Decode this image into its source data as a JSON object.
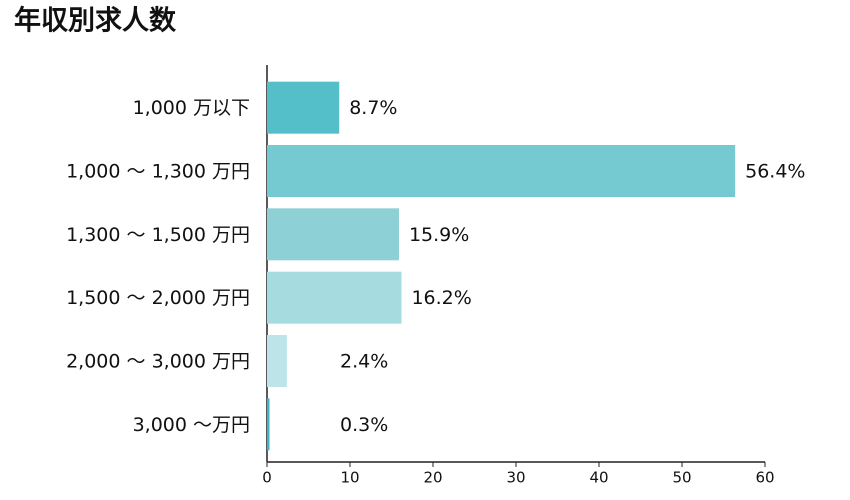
{
  "chart_data": {
    "type": "bar",
    "orientation": "horizontal",
    "title": "年収別求人数",
    "categories": [
      "1,000 万以下",
      "1,000 ～ 1,300 万円",
      "1,300 ～ 1,500 万円",
      "1,500 ～ 2,000 万円",
      "2,000 ～ 3,000 万円",
      "3,000 ～万円"
    ],
    "values": [
      8.7,
      56.4,
      15.9,
      16.2,
      2.4,
      0.3
    ],
    "value_labels": [
      "8.7%",
      "56.4%",
      "15.9%",
      "16.2%",
      "2.4%",
      "0.3%"
    ],
    "colors": [
      "#55bfc9",
      "#75c9d0",
      "#8dd1d7",
      "#a6dbe0",
      "#bde4e8",
      "#3fb6c1"
    ],
    "xlim": [
      0,
      60
    ],
    "xticks": [
      0,
      10,
      20,
      30,
      40,
      50,
      60
    ],
    "grid": false
  }
}
